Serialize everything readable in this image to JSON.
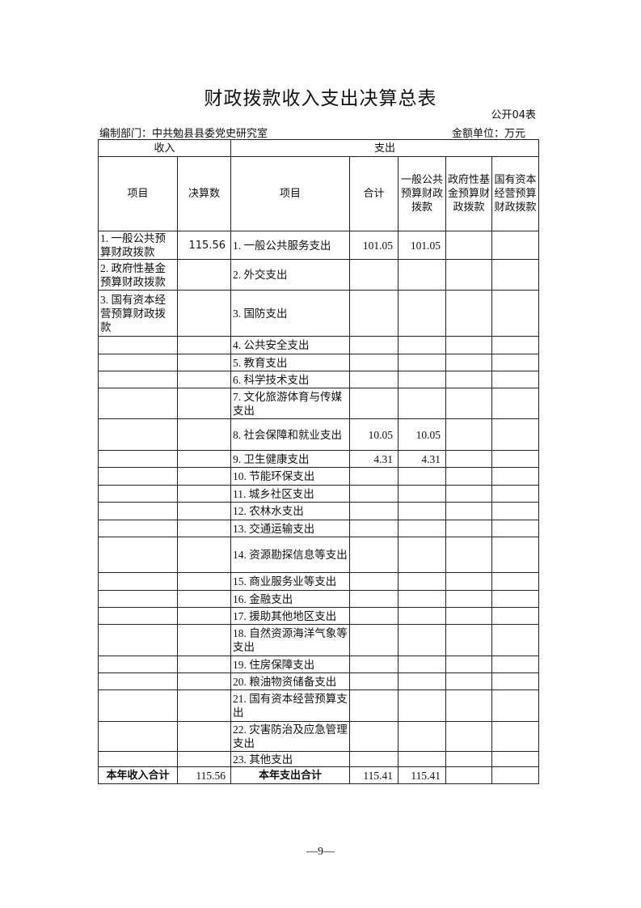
{
  "title": "财政拨款收入支出决算总表",
  "form_code": "公开04表",
  "department": "编制部门：中共勉县县委党史研究室",
  "unit": "金额单位：万元",
  "headers": {
    "income": "收入",
    "expense": "支出",
    "income_item": "项目",
    "income_amount": "决算数",
    "expense_item": "项目",
    "total": "合计",
    "general_budget": "一般公共预算财政拨款",
    "gov_fund": "政府性基金预算财政拨款",
    "state_capital": "国有资本经营预算财政拨款"
  },
  "rows": [
    {
      "inc": "1. 一般公共预算财政拨款",
      "inc_amt": "115.56",
      "exp": "1. 一般公共服务支出",
      "total": "101.05",
      "general": "101.05",
      "fund": "",
      "capital": ""
    },
    {
      "inc": "2. 政府性基金预算财政拨款",
      "inc_amt": "",
      "exp": "2. 外交支出",
      "total": "",
      "general": "",
      "fund": "",
      "capital": ""
    },
    {
      "inc": "3. 国有资本经营预算财政拨款",
      "inc_amt": "",
      "exp": "3. 国防支出",
      "total": "",
      "general": "",
      "fund": "",
      "capital": ""
    },
    {
      "inc": "",
      "inc_amt": "",
      "exp": "4. 公共安全支出",
      "total": "",
      "general": "",
      "fund": "",
      "capital": ""
    },
    {
      "inc": "",
      "inc_amt": "",
      "exp": "5. 教育支出",
      "total": "",
      "general": "",
      "fund": "",
      "capital": ""
    },
    {
      "inc": "",
      "inc_amt": "",
      "exp": "6. 科学技术支出",
      "total": "",
      "general": "",
      "fund": "",
      "capital": ""
    },
    {
      "inc": "",
      "inc_amt": "",
      "exp": "7. 文化旅游体育与传媒支出",
      "total": "",
      "general": "",
      "fund": "",
      "capital": ""
    },
    {
      "inc": "",
      "inc_amt": "",
      "exp": "8. 社会保障和就业支出",
      "total": "10.05",
      "general": "10.05",
      "fund": "",
      "capital": ""
    },
    {
      "inc": "",
      "inc_amt": "",
      "exp": "9. 卫生健康支出",
      "total": "4.31",
      "general": "4.31",
      "fund": "",
      "capital": ""
    },
    {
      "inc": "",
      "inc_amt": "",
      "exp": "10. 节能环保支出",
      "total": "",
      "general": "",
      "fund": "",
      "capital": ""
    },
    {
      "inc": "",
      "inc_amt": "",
      "exp": "11. 城乡社区支出",
      "total": "",
      "general": "",
      "fund": "",
      "capital": ""
    },
    {
      "inc": "",
      "inc_amt": "",
      "exp": "12. 农林水支出",
      "total": "",
      "general": "",
      "fund": "",
      "capital": ""
    },
    {
      "inc": "",
      "inc_amt": "",
      "exp": "13. 交通运输支出",
      "total": "",
      "general": "",
      "fund": "",
      "capital": ""
    },
    {
      "inc": "",
      "inc_amt": "",
      "exp": "14. 资源勘探信息等支出",
      "total": "",
      "general": "",
      "fund": "",
      "capital": ""
    },
    {
      "inc": "",
      "inc_amt": "",
      "exp": "15. 商业服务业等支出",
      "total": "",
      "general": "",
      "fund": "",
      "capital": ""
    },
    {
      "inc": "",
      "inc_amt": "",
      "exp": "16. 金融支出",
      "total": "",
      "general": "",
      "fund": "",
      "capital": ""
    },
    {
      "inc": "",
      "inc_amt": "",
      "exp": "17. 援助其他地区支出",
      "total": "",
      "general": "",
      "fund": "",
      "capital": ""
    },
    {
      "inc": "",
      "inc_amt": "",
      "exp": "18. 自然资源海洋气象等支出",
      "total": "",
      "general": "",
      "fund": "",
      "capital": ""
    },
    {
      "inc": "",
      "inc_amt": "",
      "exp": "19. 住房保障支出",
      "total": "",
      "general": "",
      "fund": "",
      "capital": ""
    },
    {
      "inc": "",
      "inc_amt": "",
      "exp": "20. 粮油物资储备支出",
      "total": "",
      "general": "",
      "fund": "",
      "capital": ""
    },
    {
      "inc": "",
      "inc_amt": "",
      "exp": "21. 国有资本经营预算支出",
      "total": "",
      "general": "",
      "fund": "",
      "capital": ""
    },
    {
      "inc": "",
      "inc_amt": "",
      "exp": "22. 灾害防治及应急管理支出",
      "total": "",
      "general": "",
      "fund": "",
      "capital": ""
    },
    {
      "inc": "",
      "inc_amt": "",
      "exp": "23. 其他支出",
      "total": "",
      "general": "",
      "fund": "",
      "capital": ""
    }
  ],
  "totals": {
    "income_label": "本年收入合计",
    "income_amount": "115.56",
    "expense_label": "本年支出合计",
    "total": "115.41",
    "general": "115.41",
    "fund": "",
    "capital": ""
  },
  "page_number": "—9—"
}
